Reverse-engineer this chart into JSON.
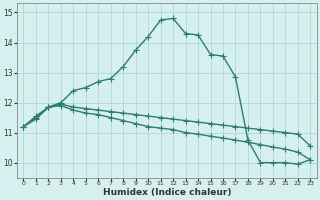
{
  "title": "",
  "xlabel": "Humidex (Indice chaleur)",
  "ylabel": "",
  "background_color": "#d6f0f0",
  "grid_color": "#b0d8d8",
  "line_color": "#2e7d6e",
  "xlim": [
    -0.5,
    23.5
  ],
  "ylim": [
    9.5,
    15.3
  ],
  "xticks": [
    0,
    1,
    2,
    3,
    4,
    5,
    6,
    7,
    8,
    9,
    10,
    11,
    12,
    13,
    14,
    15,
    16,
    17,
    18,
    19,
    20,
    21,
    22,
    23
  ],
  "yticks": [
    10,
    11,
    12,
    13,
    14,
    15
  ],
  "series1_x": [
    0,
    1,
    2,
    3,
    4,
    5,
    6,
    7,
    8,
    9,
    10,
    11,
    12,
    13,
    14,
    15,
    16,
    17,
    18,
    19,
    20,
    21,
    22,
    23
  ],
  "series1_y": [
    11.2,
    11.55,
    11.85,
    12.0,
    12.4,
    12.5,
    12.7,
    12.8,
    13.2,
    13.75,
    14.2,
    14.75,
    14.8,
    14.3,
    14.25,
    13.6,
    13.55,
    12.85,
    10.75,
    10.0,
    10.0,
    10.0,
    9.95,
    10.1
  ],
  "series2_x": [
    0,
    1,
    2,
    3,
    4,
    5,
    6,
    7,
    8,
    9,
    10,
    11,
    12,
    13,
    14,
    15,
    16,
    17,
    18,
    19,
    20,
    21,
    22,
    23
  ],
  "series2_y": [
    11.2,
    11.5,
    11.85,
    11.95,
    11.85,
    11.8,
    11.75,
    11.7,
    11.65,
    11.6,
    11.55,
    11.5,
    11.45,
    11.4,
    11.35,
    11.3,
    11.25,
    11.2,
    11.15,
    11.1,
    11.05,
    11.0,
    10.95,
    10.55
  ],
  "series3_x": [
    0,
    1,
    2,
    3,
    4,
    5,
    6,
    7,
    8,
    9,
    10,
    11,
    12,
    13,
    14,
    15,
    16,
    17,
    18,
    19,
    20,
    21,
    22,
    23
  ],
  "series3_y": [
    11.2,
    11.45,
    11.85,
    11.9,
    11.75,
    11.65,
    11.6,
    11.5,
    11.4,
    11.3,
    11.2,
    11.15,
    11.1,
    11.0,
    10.95,
    10.88,
    10.82,
    10.75,
    10.68,
    10.6,
    10.52,
    10.45,
    10.35,
    10.1
  ],
  "marker": "+",
  "markersize": 4,
  "linewidth": 1.0
}
